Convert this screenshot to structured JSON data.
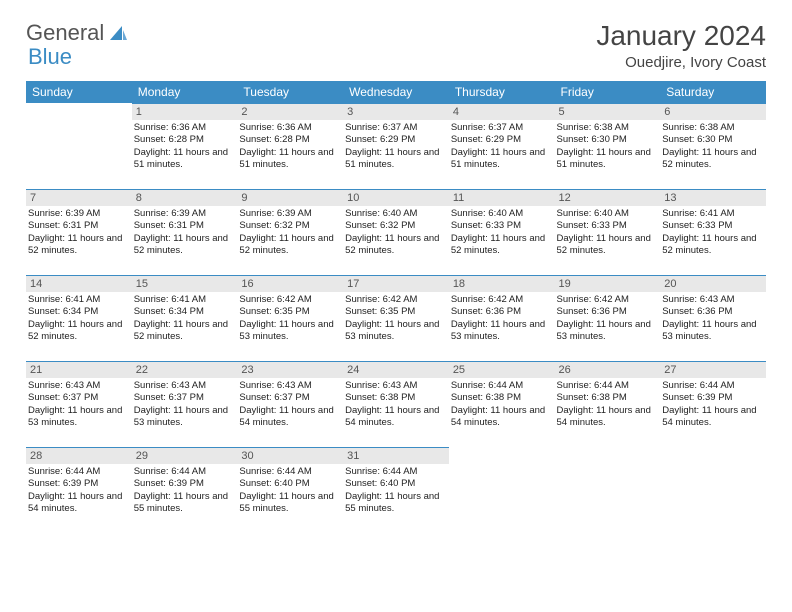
{
  "brand": {
    "part1": "General",
    "part2": "Blue"
  },
  "title": "January 2024",
  "location": "Ouedjire, Ivory Coast",
  "colors": {
    "header_bg": "#3b8cc4",
    "header_text": "#ffffff",
    "daynum_bg": "#e8e8e8",
    "border": "#3b8cc4"
  },
  "weekdays": [
    "Sunday",
    "Monday",
    "Tuesday",
    "Wednesday",
    "Thursday",
    "Friday",
    "Saturday"
  ],
  "start_offset": 1,
  "days": [
    {
      "n": "1",
      "sunrise": "6:36 AM",
      "sunset": "6:28 PM",
      "daylight": "11 hours and 51 minutes."
    },
    {
      "n": "2",
      "sunrise": "6:36 AM",
      "sunset": "6:28 PM",
      "daylight": "11 hours and 51 minutes."
    },
    {
      "n": "3",
      "sunrise": "6:37 AM",
      "sunset": "6:29 PM",
      "daylight": "11 hours and 51 minutes."
    },
    {
      "n": "4",
      "sunrise": "6:37 AM",
      "sunset": "6:29 PM",
      "daylight": "11 hours and 51 minutes."
    },
    {
      "n": "5",
      "sunrise": "6:38 AM",
      "sunset": "6:30 PM",
      "daylight": "11 hours and 51 minutes."
    },
    {
      "n": "6",
      "sunrise": "6:38 AM",
      "sunset": "6:30 PM",
      "daylight": "11 hours and 52 minutes."
    },
    {
      "n": "7",
      "sunrise": "6:39 AM",
      "sunset": "6:31 PM",
      "daylight": "11 hours and 52 minutes."
    },
    {
      "n": "8",
      "sunrise": "6:39 AM",
      "sunset": "6:31 PM",
      "daylight": "11 hours and 52 minutes."
    },
    {
      "n": "9",
      "sunrise": "6:39 AM",
      "sunset": "6:32 PM",
      "daylight": "11 hours and 52 minutes."
    },
    {
      "n": "10",
      "sunrise": "6:40 AM",
      "sunset": "6:32 PM",
      "daylight": "11 hours and 52 minutes."
    },
    {
      "n": "11",
      "sunrise": "6:40 AM",
      "sunset": "6:33 PM",
      "daylight": "11 hours and 52 minutes."
    },
    {
      "n": "12",
      "sunrise": "6:40 AM",
      "sunset": "6:33 PM",
      "daylight": "11 hours and 52 minutes."
    },
    {
      "n": "13",
      "sunrise": "6:41 AM",
      "sunset": "6:33 PM",
      "daylight": "11 hours and 52 minutes."
    },
    {
      "n": "14",
      "sunrise": "6:41 AM",
      "sunset": "6:34 PM",
      "daylight": "11 hours and 52 minutes."
    },
    {
      "n": "15",
      "sunrise": "6:41 AM",
      "sunset": "6:34 PM",
      "daylight": "11 hours and 52 minutes."
    },
    {
      "n": "16",
      "sunrise": "6:42 AM",
      "sunset": "6:35 PM",
      "daylight": "11 hours and 53 minutes."
    },
    {
      "n": "17",
      "sunrise": "6:42 AM",
      "sunset": "6:35 PM",
      "daylight": "11 hours and 53 minutes."
    },
    {
      "n": "18",
      "sunrise": "6:42 AM",
      "sunset": "6:36 PM",
      "daylight": "11 hours and 53 minutes."
    },
    {
      "n": "19",
      "sunrise": "6:42 AM",
      "sunset": "6:36 PM",
      "daylight": "11 hours and 53 minutes."
    },
    {
      "n": "20",
      "sunrise": "6:43 AM",
      "sunset": "6:36 PM",
      "daylight": "11 hours and 53 minutes."
    },
    {
      "n": "21",
      "sunrise": "6:43 AM",
      "sunset": "6:37 PM",
      "daylight": "11 hours and 53 minutes."
    },
    {
      "n": "22",
      "sunrise": "6:43 AM",
      "sunset": "6:37 PM",
      "daylight": "11 hours and 53 minutes."
    },
    {
      "n": "23",
      "sunrise": "6:43 AM",
      "sunset": "6:37 PM",
      "daylight": "11 hours and 54 minutes."
    },
    {
      "n": "24",
      "sunrise": "6:43 AM",
      "sunset": "6:38 PM",
      "daylight": "11 hours and 54 minutes."
    },
    {
      "n": "25",
      "sunrise": "6:44 AM",
      "sunset": "6:38 PM",
      "daylight": "11 hours and 54 minutes."
    },
    {
      "n": "26",
      "sunrise": "6:44 AM",
      "sunset": "6:38 PM",
      "daylight": "11 hours and 54 minutes."
    },
    {
      "n": "27",
      "sunrise": "6:44 AM",
      "sunset": "6:39 PM",
      "daylight": "11 hours and 54 minutes."
    },
    {
      "n": "28",
      "sunrise": "6:44 AM",
      "sunset": "6:39 PM",
      "daylight": "11 hours and 54 minutes."
    },
    {
      "n": "29",
      "sunrise": "6:44 AM",
      "sunset": "6:39 PM",
      "daylight": "11 hours and 55 minutes."
    },
    {
      "n": "30",
      "sunrise": "6:44 AM",
      "sunset": "6:40 PM",
      "daylight": "11 hours and 55 minutes."
    },
    {
      "n": "31",
      "sunrise": "6:44 AM",
      "sunset": "6:40 PM",
      "daylight": "11 hours and 55 minutes."
    }
  ],
  "labels": {
    "sunrise": "Sunrise:",
    "sunset": "Sunset:",
    "daylight": "Daylight:"
  }
}
